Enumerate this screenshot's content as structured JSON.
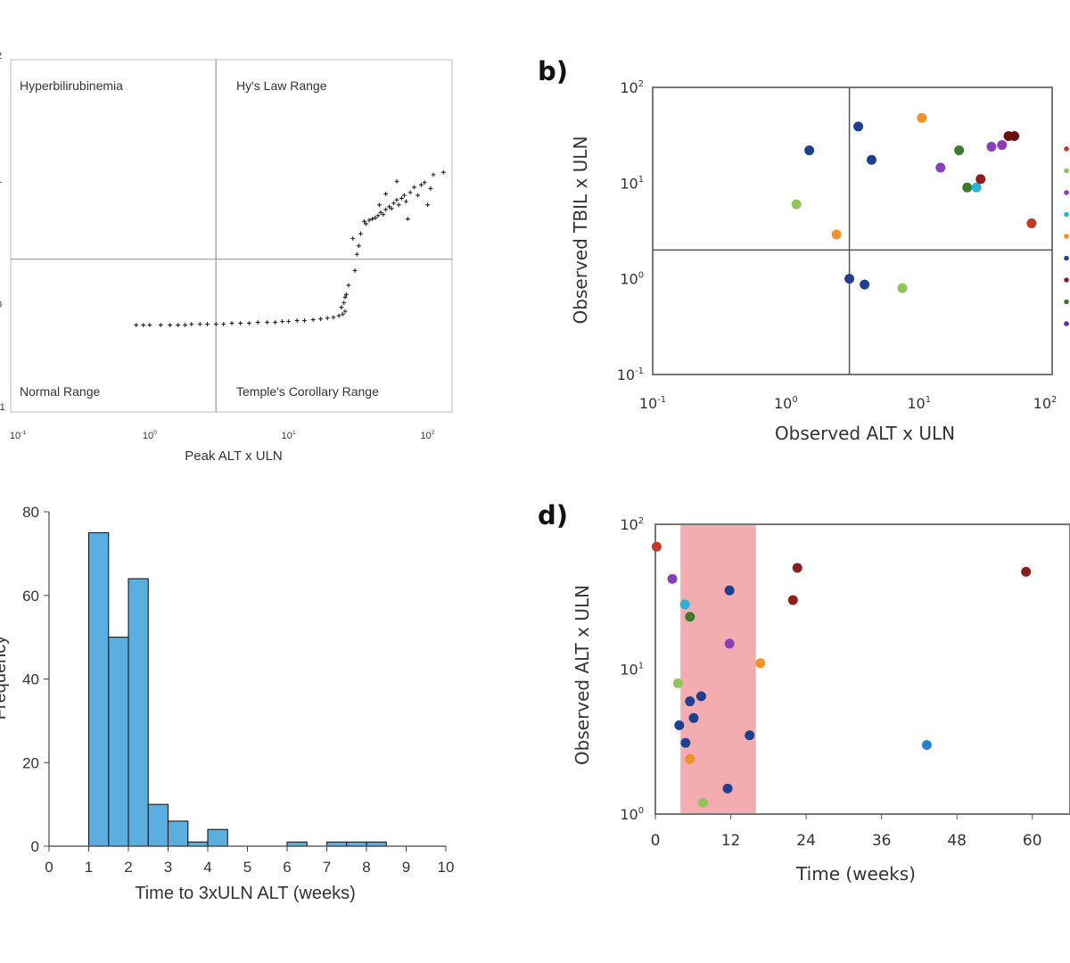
{
  "panel_a": {
    "xlabel": "Peak ALT x ULN",
    "region_labels": [
      "Hyperbilirubinemia",
      "Hy's Law Range",
      "Normal Range",
      "Temple's Corollary Range"
    ],
    "x_ticks": [
      {
        "v": 0.1,
        "b": "10",
        "e": "-1"
      },
      {
        "v": 1,
        "b": "10",
        "e": "0"
      },
      {
        "v": 10,
        "b": "10",
        "e": "1"
      },
      {
        "v": 100,
        "b": "10",
        "e": "2"
      }
    ]
  },
  "panel_b": {
    "label": "b)",
    "xlabel": "Observed ALT x ULN",
    "ylabel": "Observed TBIL x ULN",
    "x_ticks": [
      {
        "v": 0.1,
        "b": "10",
        "e": "-1"
      },
      {
        "v": 1,
        "b": "10",
        "e": "0"
      },
      {
        "v": 10,
        "b": "10",
        "e": "1"
      },
      {
        "v": 100,
        "b": "10",
        "e": "2"
      }
    ],
    "y_ticks": [
      {
        "v": 0.1,
        "b": "10",
        "e": "-1"
      },
      {
        "v": 1,
        "b": "10",
        "e": "0"
      },
      {
        "v": 10,
        "b": "10",
        "e": "1"
      },
      {
        "v": 100,
        "b": "10",
        "e": "2"
      }
    ]
  },
  "panel_c": {
    "xlabel": "Time to 3xULN ALT (weeks)",
    "ylabel": "Frequency",
    "x_ticks": [
      "0",
      "1",
      "2",
      "3",
      "4",
      "5",
      "6",
      "7",
      "8",
      "9",
      "10"
    ],
    "y_ticks": [
      "0",
      "20",
      "40",
      "60",
      "80"
    ]
  },
  "panel_d": {
    "label": "d)",
    "xlabel": "Time (weeks)",
    "ylabel": "Observed ALT x ULN",
    "x_ticks": [
      "0",
      "12",
      "24",
      "36",
      "48",
      "60"
    ],
    "y_ticks": [
      {
        "v": 1,
        "b": "10",
        "e": "0"
      },
      {
        "v": 10,
        "b": "10",
        "e": "1"
      },
      {
        "v": 100,
        "b": "10",
        "e": "2"
      }
    ]
  },
  "chart_data": [
    {
      "id": "a",
      "type": "scatter",
      "xscale": "log",
      "yscale": "log",
      "xlim": [
        0.1,
        150
      ],
      "ylim": [
        0.1,
        100
      ],
      "xlabel": "Peak ALT x ULN",
      "threshold_x": 3,
      "threshold_y": 2,
      "regions": [
        "Hyperbilirubinemia",
        "Hy's Law Range",
        "Normal Range",
        "Temple's Corollary Range"
      ],
      "series": [
        {
          "name": "flat",
          "points": [
            [
              0.8,
              0.55
            ],
            [
              0.9,
              0.55
            ],
            [
              1.0,
              0.55
            ],
            [
              1.2,
              0.55
            ],
            [
              1.4,
              0.55
            ],
            [
              1.6,
              0.55
            ],
            [
              1.8,
              0.55
            ],
            [
              2.0,
              0.56
            ],
            [
              2.3,
              0.56
            ],
            [
              2.6,
              0.56
            ],
            [
              3.0,
              0.56
            ],
            [
              3.4,
              0.56
            ],
            [
              3.9,
              0.57
            ],
            [
              4.5,
              0.57
            ],
            [
              5.2,
              0.57
            ],
            [
              6.0,
              0.58
            ],
            [
              7.0,
              0.58
            ],
            [
              8.0,
              0.58
            ],
            [
              9.0,
              0.59
            ],
            [
              10,
              0.59
            ],
            [
              11.5,
              0.6
            ],
            [
              13,
              0.6
            ],
            [
              15,
              0.61
            ],
            [
              17,
              0.62
            ],
            [
              19,
              0.63
            ],
            [
              21,
              0.64
            ],
            [
              23,
              0.66
            ],
            [
              24.5,
              0.68
            ],
            [
              25.5,
              0.72
            ]
          ]
        },
        {
          "name": "rise",
          "points": [
            [
              24,
              0.78
            ],
            [
              25,
              0.85
            ],
            [
              25.5,
              0.95
            ],
            [
              26,
              1.0
            ],
            [
              27,
              1.2
            ],
            [
              30,
              1.6
            ],
            [
              31,
              2.2
            ],
            [
              32,
              2.6
            ],
            [
              33,
              3.3
            ],
            [
              29,
              3.0
            ],
            [
              35,
              4.2
            ],
            [
              36,
              4.0
            ],
            [
              38,
              4.3
            ],
            [
              40,
              4.4
            ],
            [
              42,
              4.5
            ],
            [
              44,
              4.7
            ],
            [
              46,
              5.0
            ],
            [
              48,
              4.8
            ],
            [
              50,
              5.3
            ],
            [
              53,
              5.6
            ],
            [
              55,
              5.4
            ],
            [
              57,
              6.0
            ],
            [
              60,
              6.4
            ],
            [
              62,
              5.8
            ],
            [
              65,
              6.6
            ],
            [
              68,
              7.0
            ],
            [
              70,
              6.2
            ],
            [
              75,
              7.4
            ],
            [
              80,
              8.2
            ],
            [
              85,
              7.0
            ],
            [
              90,
              8.6
            ],
            [
              95,
              9.0
            ],
            [
              100,
              5.8
            ],
            [
              105,
              8.0
            ],
            [
              110,
              10.5
            ],
            [
              130,
              11.0
            ],
            [
              50,
              7.2
            ],
            [
              60,
              9.2
            ],
            [
              72,
              4.4
            ],
            [
              45,
              5.8
            ]
          ]
        }
      ]
    },
    {
      "id": "b",
      "type": "scatter",
      "xscale": "log",
      "yscale": "log",
      "xlim": [
        0.1,
        100
      ],
      "ylim": [
        0.1,
        100
      ],
      "xlabel": "Observed ALT x ULN",
      "ylabel": "Observed TBIL x ULN",
      "threshold_x": 3,
      "threshold_y": 2,
      "points": [
        {
          "x": 1.5,
          "y": 22,
          "color": "#1f3f8f"
        },
        {
          "x": 1.2,
          "y": 6,
          "color": "#8fc45a"
        },
        {
          "x": 2.4,
          "y": 2.9,
          "color": "#f0922a"
        },
        {
          "x": 3.0,
          "y": 1.0,
          "color": "#1f3f8f"
        },
        {
          "x": 3.5,
          "y": 39,
          "color": "#1f3f8f"
        },
        {
          "x": 3.9,
          "y": 0.87,
          "color": "#1f3f8f"
        },
        {
          "x": 4.4,
          "y": 17.5,
          "color": "#1f3f8f"
        },
        {
          "x": 7.5,
          "y": 0.8,
          "color": "#8fc45a"
        },
        {
          "x": 10.5,
          "y": 48,
          "color": "#f0922a"
        },
        {
          "x": 14.5,
          "y": 14.5,
          "color": "#8a3fb8"
        },
        {
          "x": 20,
          "y": 22,
          "color": "#3d7a2e"
        },
        {
          "x": 23,
          "y": 9,
          "color": "#3d7a2e"
        },
        {
          "x": 27,
          "y": 9,
          "color": "#2bb1d8"
        },
        {
          "x": 29,
          "y": 11,
          "color": "#8b1f1f"
        },
        {
          "x": 35,
          "y": 24,
          "color": "#8a3fb8"
        },
        {
          "x": 42,
          "y": 25,
          "color": "#8a3fb8"
        },
        {
          "x": 47,
          "y": 31,
          "color": "#6b1010"
        },
        {
          "x": 52,
          "y": 31,
          "color": "#6b1010"
        },
        {
          "x": 70,
          "y": 3.8,
          "color": "#c0392b"
        }
      ]
    },
    {
      "id": "c",
      "type": "bar",
      "title": "",
      "xlabel": "Time to 3xULN ALT (weeks)",
      "ylabel": "Frequency",
      "bin_edges": [
        1,
        1.5,
        2,
        2.5,
        3,
        3.5,
        4,
        4.5,
        5,
        5.5,
        6,
        6.5,
        7,
        7.5,
        8,
        8.5,
        9,
        9.5,
        10
      ],
      "values": [
        75,
        50,
        64,
        10,
        6,
        1,
        4,
        0,
        0,
        0,
        1,
        0,
        1,
        1,
        1,
        0,
        0,
        0
      ],
      "xlim": [
        0,
        10
      ],
      "ylim": [
        0,
        80
      ]
    },
    {
      "id": "d",
      "type": "scatter",
      "xscale": "linear",
      "yscale": "log",
      "xlim": [
        0,
        66
      ],
      "ylim": [
        1,
        100
      ],
      "xlabel": "Time (weeks)",
      "ylabel": "Observed ALT x ULN",
      "shaded_x": [
        4,
        16
      ],
      "points": [
        {
          "x": 0.2,
          "y": 70,
          "color": "#c0392b"
        },
        {
          "x": 2.7,
          "y": 42,
          "color": "#8a3fb8"
        },
        {
          "x": 3.6,
          "y": 8,
          "color": "#8fc45a"
        },
        {
          "x": 3.8,
          "y": 4.1,
          "color": "#1f3f8f"
        },
        {
          "x": 4.7,
          "y": 28,
          "color": "#2bb1d8"
        },
        {
          "x": 4.8,
          "y": 3.1,
          "color": "#1f3f8f"
        },
        {
          "x": 5.5,
          "y": 6.0,
          "color": "#1f3f8f"
        },
        {
          "x": 5.5,
          "y": 23,
          "color": "#3d7a2e"
        },
        {
          "x": 5.5,
          "y": 2.4,
          "color": "#f0922a"
        },
        {
          "x": 6.1,
          "y": 4.6,
          "color": "#1f3f8f"
        },
        {
          "x": 7.3,
          "y": 6.5,
          "color": "#1f3f8f"
        },
        {
          "x": 7.6,
          "y": 1.2,
          "color": "#8fc45a"
        },
        {
          "x": 11.5,
          "y": 1.5,
          "color": "#1f3f8f"
        },
        {
          "x": 11.8,
          "y": 35,
          "color": "#1f3f8f"
        },
        {
          "x": 11.8,
          "y": 15,
          "color": "#8a3fb8"
        },
        {
          "x": 15,
          "y": 3.5,
          "color": "#1f3f8f"
        },
        {
          "x": 16.7,
          "y": 11,
          "color": "#f0922a"
        },
        {
          "x": 21.9,
          "y": 30,
          "color": "#8b1f1f"
        },
        {
          "x": 22.6,
          "y": 50,
          "color": "#8b1f1f"
        },
        {
          "x": 43.2,
          "y": 3.0,
          "color": "#2e7bd6"
        },
        {
          "x": 59,
          "y": 47,
          "color": "#8b1f1f"
        }
      ]
    }
  ],
  "colors": {
    "bar_fill": "#5aaee0",
    "shade": "#f2a3a6",
    "legend": [
      "#c0392b",
      "#8fc45a",
      "#8a3fb8",
      "#2bb1d8",
      "#f0922a",
      "#1f3f8f",
      "#8b1f1f",
      "#3d7a2e",
      "#5b2fa0"
    ]
  }
}
